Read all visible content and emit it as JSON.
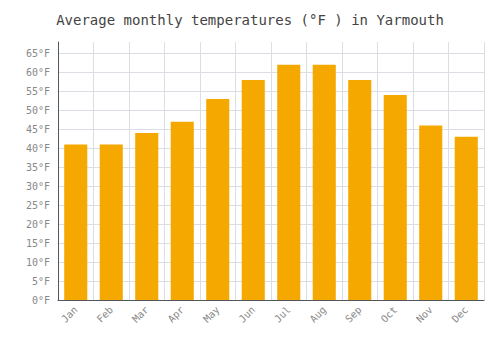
{
  "chart_data": {
    "type": "bar",
    "title": "Average monthly temperatures (°F ) in Yarmouth",
    "categories": [
      "Jan",
      "Feb",
      "Mar",
      "Apr",
      "May",
      "Jun",
      "Jul",
      "Aug",
      "Sep",
      "Oct",
      "Nov",
      "Dec"
    ],
    "values": [
      41,
      41,
      44,
      47,
      53,
      58,
      62,
      62,
      58,
      54,
      46,
      43
    ],
    "color": "#F5A800",
    "ylim": [
      0,
      68
    ],
    "yticks": [
      {
        "value": 0,
        "label": "0°F"
      },
      {
        "value": 5,
        "label": "5°F"
      },
      {
        "value": 10,
        "label": "10°F"
      },
      {
        "value": 15,
        "label": "15°F"
      },
      {
        "value": 20,
        "label": "20°F"
      },
      {
        "value": 25,
        "label": "25°F"
      },
      {
        "value": 30,
        "label": "30°F"
      },
      {
        "value": 35,
        "label": "35°F"
      },
      {
        "value": 40,
        "label": "40°F"
      },
      {
        "value": 45,
        "label": "45°F"
      },
      {
        "value": 50,
        "label": "50°F"
      },
      {
        "value": 55,
        "label": "55°F"
      },
      {
        "value": 60,
        "label": "60°F"
      },
      {
        "value": 65,
        "label": "65°F"
      }
    ],
    "grid": true
  }
}
